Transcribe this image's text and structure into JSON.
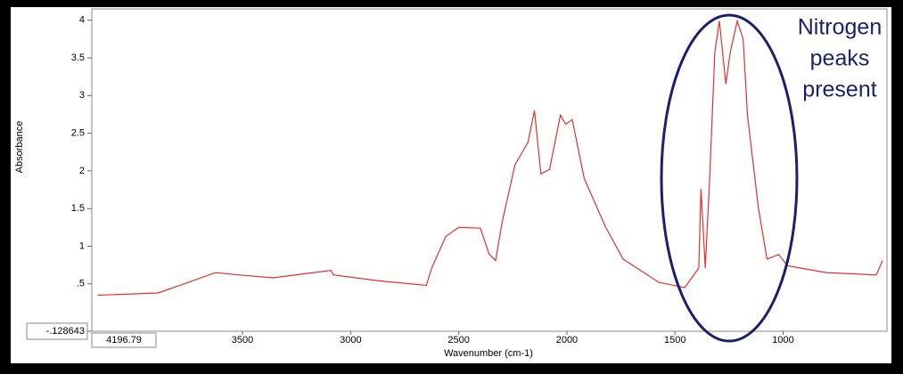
{
  "chart_data": {
    "type": "line",
    "xlabel": "Wavenumber (cm-1)",
    "ylabel": "Absorbance",
    "annotation": [
      "Nitrogen",
      "peaks",
      "present"
    ],
    "color": "#e0312e",
    "x": [
      4170,
      3890,
      3770,
      3625,
      3520,
      3360,
      3200,
      3090,
      3080,
      2870,
      2650,
      2625,
      2560,
      2500,
      2400,
      2360,
      2330,
      2300,
      2240,
      2180,
      2150,
      2120,
      2080,
      2030,
      2005,
      1975,
      1920,
      1820,
      1740,
      1575,
      1455,
      1390,
      1380,
      1360,
      1340,
      1316,
      1295,
      1265,
      1245,
      1212,
      1185,
      1165,
      1115,
      1075,
      1020,
      980,
      800,
      570,
      540
    ],
    "values": [
      0.35,
      0.38,
      0.5,
      0.65,
      0.62,
      0.58,
      0.64,
      0.68,
      0.62,
      0.54,
      0.48,
      0.71,
      1.13,
      1.25,
      1.24,
      0.9,
      0.81,
      1.31,
      2.08,
      2.38,
      2.8,
      1.96,
      2.02,
      2.74,
      2.62,
      2.68,
      1.9,
      1.25,
      0.83,
      0.52,
      0.45,
      0.71,
      1.76,
      0.71,
      1.9,
      3.57,
      3.99,
      3.15,
      3.57,
      3.99,
      3.75,
      2.74,
      1.52,
      0.83,
      0.89,
      0.74,
      0.65,
      0.62,
      0.81
    ],
    "xlim": [
      4196.79,
      520
    ],
    "ylim": [
      -0.128643,
      4.15
    ],
    "xticks": [
      4196.79,
      3500,
      3000,
      2500,
      2000,
      1500,
      1000
    ],
    "yticks": [
      {
        "value": -0.128643,
        "label": "-.128643"
      },
      {
        "value": 0.5,
        "label": ".5"
      },
      1,
      1.5,
      2,
      2.5,
      3,
      3.5,
      4
    ]
  }
}
